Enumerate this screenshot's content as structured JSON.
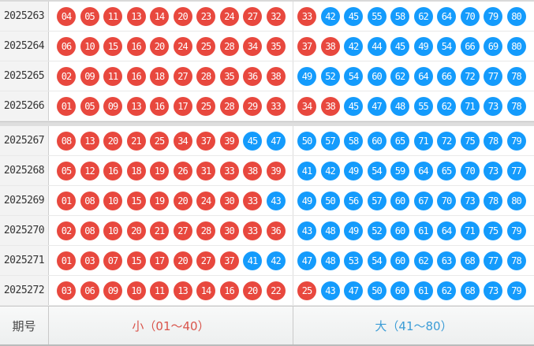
{
  "colors": {
    "small_ball": "#e8483e",
    "big_ball": "#149bfc",
    "small_label_text": "#d9544b",
    "big_label_text": "#3b9cd6"
  },
  "legend": {
    "period_label": "期号",
    "small_label": "小（01～40）",
    "big_label": "大（41～80）",
    "small_threshold": 40
  },
  "rows": [
    {
      "period": "2025263",
      "left": [
        "04",
        "05",
        "11",
        "13",
        "14",
        "20",
        "23",
        "24",
        "27",
        "32"
      ],
      "right": [
        "33",
        "42",
        "45",
        "55",
        "58",
        "62",
        "64",
        "70",
        "79",
        "80"
      ]
    },
    {
      "period": "2025264",
      "left": [
        "06",
        "10",
        "15",
        "16",
        "20",
        "24",
        "25",
        "28",
        "34",
        "35"
      ],
      "right": [
        "37",
        "38",
        "42",
        "44",
        "45",
        "49",
        "54",
        "66",
        "69",
        "80"
      ]
    },
    {
      "period": "2025265",
      "left": [
        "02",
        "09",
        "11",
        "16",
        "18",
        "27",
        "28",
        "35",
        "36",
        "38"
      ],
      "right": [
        "49",
        "52",
        "54",
        "60",
        "62",
        "64",
        "66",
        "72",
        "77",
        "78"
      ]
    },
    {
      "period": "2025266",
      "left": [
        "01",
        "05",
        "09",
        "13",
        "16",
        "17",
        "25",
        "28",
        "29",
        "33"
      ],
      "right": [
        "34",
        "38",
        "45",
        "47",
        "48",
        "55",
        "62",
        "71",
        "73",
        "78"
      ]
    },
    {
      "period": "2025267",
      "left": [
        "08",
        "13",
        "20",
        "21",
        "25",
        "34",
        "37",
        "39",
        "45",
        "47"
      ],
      "right": [
        "50",
        "57",
        "58",
        "60",
        "65",
        "71",
        "72",
        "75",
        "78",
        "79"
      ]
    },
    {
      "period": "2025268",
      "left": [
        "05",
        "12",
        "16",
        "18",
        "19",
        "26",
        "31",
        "33",
        "38",
        "39"
      ],
      "right": [
        "41",
        "42",
        "49",
        "54",
        "59",
        "64",
        "65",
        "70",
        "73",
        "77"
      ]
    },
    {
      "period": "2025269",
      "left": [
        "01",
        "08",
        "10",
        "15",
        "19",
        "20",
        "24",
        "30",
        "33",
        "43"
      ],
      "right": [
        "49",
        "50",
        "56",
        "57",
        "60",
        "67",
        "70",
        "73",
        "78",
        "80"
      ]
    },
    {
      "period": "2025270",
      "left": [
        "02",
        "08",
        "10",
        "20",
        "21",
        "27",
        "28",
        "30",
        "33",
        "36"
      ],
      "right": [
        "43",
        "48",
        "49",
        "52",
        "60",
        "61",
        "64",
        "71",
        "75",
        "79"
      ]
    },
    {
      "period": "2025271",
      "left": [
        "01",
        "03",
        "07",
        "15",
        "17",
        "20",
        "27",
        "37",
        "41",
        "42"
      ],
      "right": [
        "47",
        "48",
        "53",
        "54",
        "60",
        "62",
        "63",
        "68",
        "77",
        "78"
      ]
    },
    {
      "period": "2025272",
      "left": [
        "03",
        "06",
        "09",
        "10",
        "11",
        "13",
        "14",
        "16",
        "20",
        "22"
      ],
      "right": [
        "25",
        "43",
        "47",
        "50",
        "60",
        "61",
        "62",
        "68",
        "73",
        "79"
      ]
    }
  ],
  "group_separator_after_row": 4
}
